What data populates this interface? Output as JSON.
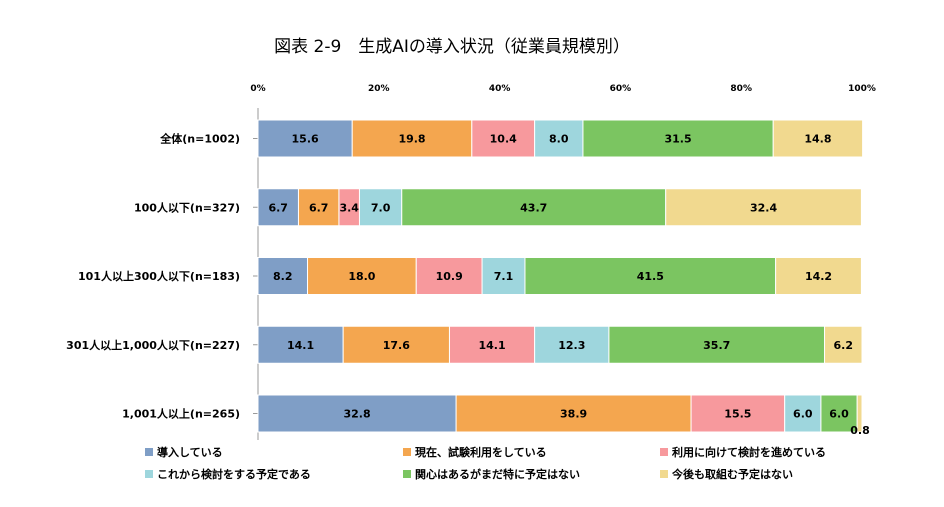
{
  "chart_data": {
    "type": "bar",
    "orientation": "horizontal",
    "stacked": true,
    "title": "図表 2-9　生成AIの導入状況（従業員規模別）",
    "x_ticks": [
      "0%",
      "20%",
      "40%",
      "60%",
      "80%",
      "100%"
    ],
    "xlim": [
      0,
      100
    ],
    "categories": [
      "全体(n=1002)",
      "100人以下(n=327)",
      "101人以上300人以下(n=183)",
      "301人以上1,000人以下(n=227)",
      "1,001人以上(n=265)"
    ],
    "series": [
      {
        "name": "導入している",
        "color": "#7f9ec6",
        "values": [
          15.6,
          6.7,
          8.2,
          14.1,
          32.8
        ]
      },
      {
        "name": "現在、試験利用をしている",
        "color": "#f4a64f",
        "values": [
          19.8,
          6.7,
          18.0,
          17.6,
          38.9
        ]
      },
      {
        "name": "利用に向けて検討を進めている",
        "color": "#f7999d",
        "values": [
          10.4,
          3.4,
          10.9,
          14.1,
          15.5
        ]
      },
      {
        "name": "これから検討をする予定である",
        "color": "#9ed6dd",
        "values": [
          8.0,
          7.0,
          7.1,
          12.3,
          6.0
        ]
      },
      {
        "name": "関心はあるがまだ特に予定はない",
        "color": "#7bc561",
        "values": [
          31.5,
          43.7,
          41.5,
          35.7,
          6.0
        ]
      },
      {
        "name": "今後も取組む予定はない",
        "color": "#f1d98f",
        "values": [
          14.8,
          32.4,
          14.2,
          6.2,
          0.8
        ]
      }
    ],
    "value_labels": [
      [
        "15.6",
        "19.8",
        "10.4",
        "8.0",
        "31.5",
        "14.8"
      ],
      [
        "6.7",
        "6.7",
        "3.4",
        "7.0",
        "43.7",
        "32.4"
      ],
      [
        "8.2",
        "18.0",
        "10.9",
        "7.1",
        "41.5",
        "14.2"
      ],
      [
        "14.1",
        "17.6",
        "14.1",
        "12.3",
        "35.7",
        "6.2"
      ],
      [
        "32.8",
        "38.9",
        "15.5",
        "6.0",
        "6.0",
        "0.8"
      ]
    ],
    "legend_position": "bottom",
    "grid": false
  }
}
